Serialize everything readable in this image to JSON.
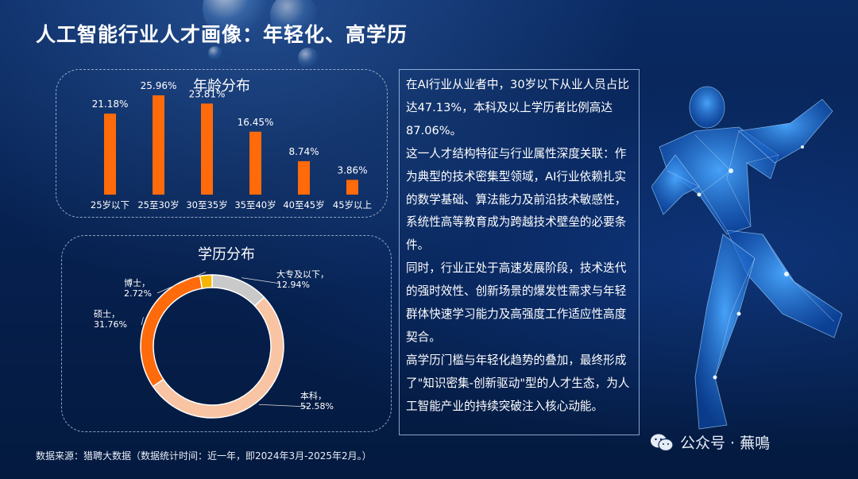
{
  "title": "人工智能行业人才画像：年轻化、高学历",
  "age_panel": {
    "title": "年龄分布"
  },
  "edu_panel": {
    "title": "学历分布"
  },
  "chart_data": [
    {
      "type": "bar",
      "title": "年龄分布",
      "categories": [
        "25岁以下",
        "25至30岁",
        "30至35岁",
        "35至40岁",
        "40至45岁",
        "45岁以上"
      ],
      "values": [
        21.18,
        25.96,
        23.81,
        16.45,
        8.74,
        3.86
      ],
      "value_labels": [
        "21.18%",
        "25.96%",
        "23.81%",
        "16.45%",
        "8.74%",
        "3.86%"
      ],
      "color": "#ff6a0a",
      "ylim": [
        0,
        27
      ]
    },
    {
      "type": "pie",
      "title": "学历分布",
      "donut": true,
      "series": [
        {
          "name": "大专及以下",
          "value": 12.94,
          "label": "12.94%",
          "color": "#c9c9c9"
        },
        {
          "name": "本科",
          "value": 52.58,
          "label": "52.58%",
          "color": "#f8c4a3"
        },
        {
          "name": "硕士",
          "value": 31.76,
          "label": "31.76%",
          "color": "#ff6a0a"
        },
        {
          "name": "博士",
          "value": 2.72,
          "label": "2.72%",
          "color": "#f7b500"
        }
      ]
    }
  ],
  "description": [
    "在AI行业从业者中，30岁以下从业人员占比达47.13%，本科及以上学历者比例高达87.06%。",
    "这一人才结构特征与行业属性深度关联：作为典型的技术密集型领域，AI行业依赖扎实的数学基础、算法能力及前沿技术敏感性，系统性高等教育成为跨越技术壁垒的必要条件。",
    "同时，行业正处于高速发展阶段，技术迭代的强时效性、创新场景的爆发性需求与年轻群体快速学习能力及高强度工作适应性高度契合。",
    "高学历门槛与年轻化趋势的叠加，最终形成了\"知识密集-创新驱动\"型的人才生态，为人工智能产业的持续突破注入核心动能。"
  ],
  "source": "数据来源：猎聘大数据（数据统计时间：近一年，即2024年3月-2025年2月。）",
  "watermark": {
    "text": "公众号 · 蕪鳴",
    "icon": "wechat-icon"
  },
  "colors": {
    "background": "#06204f",
    "bar": "#ff6a0a",
    "text": "#ffffff"
  }
}
